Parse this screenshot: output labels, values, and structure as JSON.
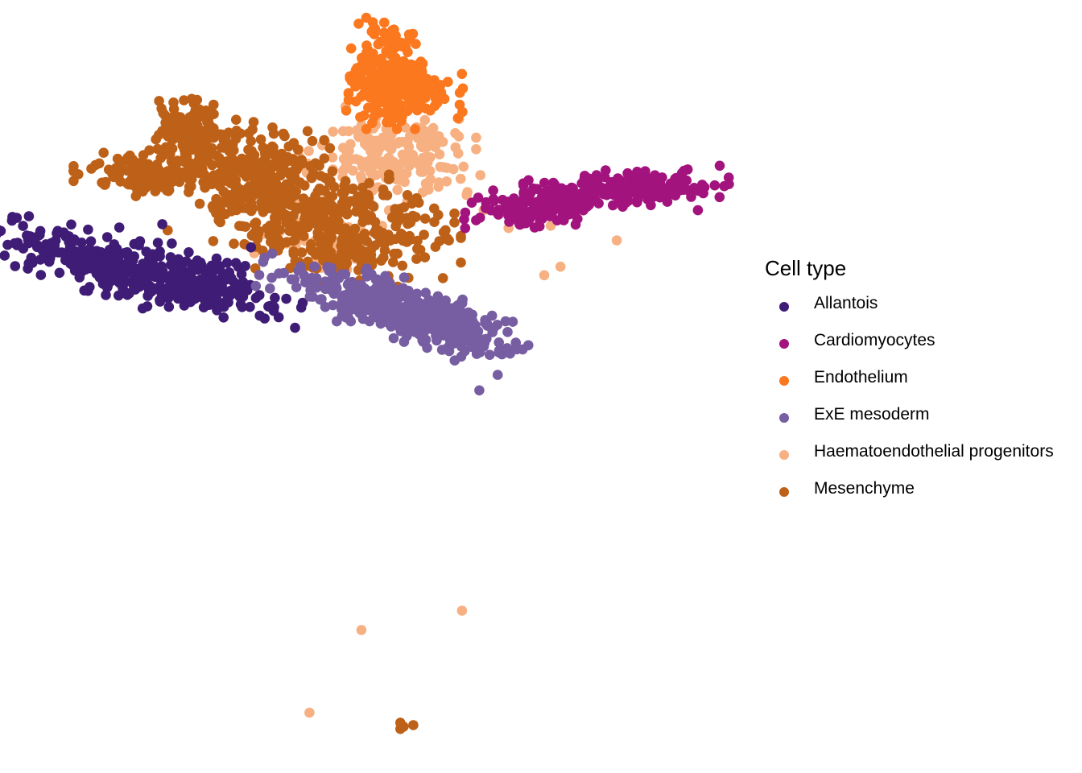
{
  "chart_data": {
    "type": "scatter",
    "title": "",
    "xlabel": "",
    "ylabel": "",
    "axes_visible": false,
    "grid": false,
    "xlim": [
      0,
      1
    ],
    "ylim": [
      0,
      1
    ],
    "legend": {
      "title": "Cell type",
      "placement": "right"
    },
    "series": [
      {
        "name": "Allantois",
        "color": "#3F1C75",
        "clusters": [
          {
            "center": [
              0.095,
              0.343
            ],
            "sd": [
              0.046,
              0.016
            ],
            "rot": 17,
            "n": 260
          },
          {
            "center": [
              0.19,
              0.366
            ],
            "sd": [
              0.038,
              0.015
            ],
            "rot": 17,
            "n": 170
          }
        ],
        "points": [
          [
            0.032,
            0.31
          ],
          [
            0.03,
            0.34
          ],
          [
            0.15,
            0.29
          ],
          [
            0.232,
            0.32
          ],
          [
            0.21,
            0.34
          ]
        ]
      },
      {
        "name": "Cardiomyocytes",
        "color": "#A3137E",
        "clusters": [
          {
            "center": [
              0.5,
              0.267
            ],
            "sd": [
              0.03,
              0.012
            ],
            "rot": -7,
            "n": 150
          },
          {
            "center": [
              0.58,
              0.243
            ],
            "sd": [
              0.04,
              0.01
            ],
            "rot": -3,
            "n": 190
          }
        ],
        "points": [
          [
            0.665,
            0.255
          ],
          [
            0.645,
            0.272
          ],
          [
            0.43,
            0.275
          ],
          [
            0.44,
            0.285
          ],
          [
            0.65,
            0.25
          ]
        ]
      },
      {
        "name": "Endothelium",
        "color": "#FB781F",
        "clusters": [
          {
            "center": [
              0.357,
              0.095
            ],
            "sd": [
              0.014,
              0.03
            ],
            "rot": 0,
            "n": 180
          },
          {
            "center": [
              0.375,
              0.12
            ],
            "sd": [
              0.022,
              0.016
            ],
            "rot": 0,
            "n": 140
          }
        ],
        "points": [
          [
            0.325,
            0.105
          ],
          [
            0.32,
            0.143
          ],
          [
            0.425,
            0.12
          ],
          [
            0.33,
            0.088
          ]
        ]
      },
      {
        "name": "ExE mesoderm",
        "color": "#775DA1",
        "clusters": [
          {
            "center": [
              0.345,
              0.39
            ],
            "sd": [
              0.045,
              0.016
            ],
            "rot": 17,
            "n": 250
          },
          {
            "center": [
              0.42,
              0.42
            ],
            "sd": [
              0.03,
              0.02
            ],
            "rot": 22,
            "n": 170
          }
        ],
        "points": [
          [
            0.443,
            0.505
          ],
          [
            0.483,
            0.452
          ],
          [
            0.46,
            0.485
          ]
        ]
      },
      {
        "name": "Haematoendothelial progenitors",
        "color": "#F7B081",
        "clusters": [
          {
            "center": [
              0.36,
              0.205
            ],
            "sd": [
              0.035,
              0.028
            ],
            "rot": 0,
            "n": 190
          },
          {
            "center": [
              0.3,
              0.315
            ],
            "sd": [
              0.03,
              0.022
            ],
            "rot": 0,
            "n": 45
          }
        ],
        "points": [
          [
            0.427,
            0.79
          ],
          [
            0.334,
            0.815
          ],
          [
            0.286,
            0.922
          ],
          [
            0.57,
            0.311
          ],
          [
            0.518,
            0.345
          ],
          [
            0.503,
            0.356
          ],
          [
            0.509,
            0.292
          ],
          [
            0.47,
            0.295
          ],
          [
            0.44,
            0.178
          ],
          [
            0.44,
            0.193
          ],
          [
            0.447,
            0.272
          ]
        ]
      },
      {
        "name": "Mesenchyme",
        "color": "#BE6118",
        "clusters": [
          {
            "center": [
              0.14,
              0.225
            ],
            "sd": [
              0.03,
              0.012
            ],
            "rot": 0,
            "n": 130
          },
          {
            "center": [
              0.175,
              0.18
            ],
            "sd": [
              0.018,
              0.028
            ],
            "rot": 0,
            "n": 140
          },
          {
            "center": [
              0.24,
              0.225
            ],
            "sd": [
              0.028,
              0.028
            ],
            "rot": 0,
            "n": 200
          },
          {
            "center": [
              0.3,
              0.28
            ],
            "sd": [
              0.05,
              0.028
            ],
            "rot": 0,
            "n": 260
          },
          {
            "center": [
              0.33,
              0.32
            ],
            "sd": [
              0.04,
              0.022
            ],
            "rot": 0,
            "n": 110
          }
        ],
        "points": [
          [
            0.37,
            0.935
          ],
          [
            0.382,
            0.938
          ],
          [
            0.37,
            0.943
          ],
          [
            0.373,
            0.94
          ],
          [
            0.155,
            0.298
          ],
          [
            0.406,
            0.312
          ],
          [
            0.385,
            0.335
          ],
          [
            0.405,
            0.278
          ]
        ]
      }
    ]
  }
}
